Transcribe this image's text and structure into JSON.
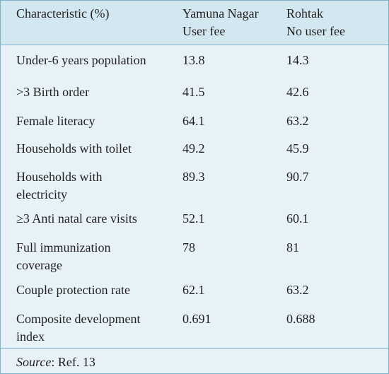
{
  "header": {
    "col1": "Characteristic (%)",
    "col2_line1": "Yamuna Nagar",
    "col2_line2": "User fee",
    "col3_line1": "Rohtak",
    "col3_line2": "No user fee"
  },
  "rows": [
    {
      "label1": "Under-6 years population",
      "label2": "",
      "yamuna": "13.8",
      "rohtak": "14.3"
    },
    {
      "label1": ">3 Birth order",
      "label2": "",
      "yamuna": "41.5",
      "rohtak": "42.6"
    },
    {
      "label1": "Female literacy",
      "label2": "",
      "yamuna": "64.1",
      "rohtak": "63.2"
    },
    {
      "label1": "Households with toilet",
      "label2": "",
      "yamuna": "49.2",
      "rohtak": "45.9"
    },
    {
      "label1": "Households with",
      "label2": "electricity",
      "yamuna": "89.3",
      "rohtak": "90.7"
    },
    {
      "label1": "≥3 Anti natal care visits",
      "label2": "",
      "yamuna": "52.1",
      "rohtak": "60.1"
    },
    {
      "label1": "Full immunization",
      "label2": "coverage",
      "yamuna": "78",
      "rohtak": "81"
    },
    {
      "label1": "Couple protection rate",
      "label2": "",
      "yamuna": "62.1",
      "rohtak": "63.2"
    },
    {
      "label1": "Composite development",
      "label2": "index",
      "yamuna": "0.691",
      "rohtak": "0.688"
    }
  ],
  "source": {
    "label": "Source",
    "text": ": Ref. 13"
  }
}
